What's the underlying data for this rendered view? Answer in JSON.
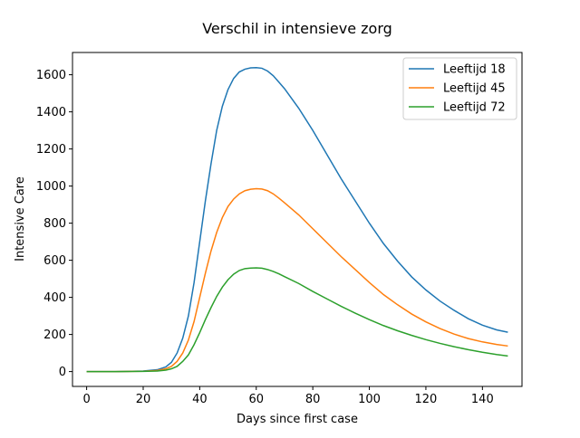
{
  "chart_data": {
    "type": "line",
    "title": "Verschil in intensieve zorg",
    "xlabel": "Days since first case",
    "ylabel": "Intensive Care",
    "xlim": [
      -5,
      154
    ],
    "ylim": [
      -80,
      1720
    ],
    "xticks": [
      0,
      20,
      40,
      60,
      80,
      100,
      120,
      140
    ],
    "yticks": [
      0,
      200,
      400,
      600,
      800,
      1000,
      1200,
      1400,
      1600
    ],
    "grid": false,
    "legend_position": "top-right",
    "series": [
      {
        "name": "Leeftijd 18",
        "color": "#1f77b4",
        "x": [
          0,
          10,
          20,
          25,
          28,
          30,
          32,
          34,
          36,
          38,
          40,
          42,
          44,
          46,
          48,
          50,
          52,
          54,
          56,
          58,
          60,
          62,
          64,
          66,
          68,
          70,
          75,
          80,
          85,
          90,
          95,
          100,
          105,
          110,
          115,
          120,
          125,
          130,
          135,
          140,
          145,
          149
        ],
        "y": [
          0,
          0,
          3,
          10,
          25,
          50,
          100,
          180,
          300,
          480,
          700,
          920,
          1120,
          1300,
          1430,
          1520,
          1580,
          1615,
          1630,
          1637,
          1638,
          1635,
          1620,
          1595,
          1560,
          1525,
          1420,
          1300,
          1170,
          1040,
          920,
          800,
          690,
          595,
          510,
          440,
          380,
          330,
          285,
          250,
          225,
          212
        ]
      },
      {
        "name": "Leeftijd 45",
        "color": "#ff7f0e",
        "x": [
          0,
          10,
          20,
          25,
          28,
          30,
          32,
          34,
          36,
          38,
          40,
          42,
          44,
          46,
          48,
          50,
          52,
          54,
          56,
          58,
          60,
          62,
          64,
          66,
          68,
          70,
          75,
          80,
          85,
          90,
          95,
          100,
          105,
          110,
          115,
          120,
          125,
          130,
          135,
          140,
          145,
          149
        ],
        "y": [
          0,
          0,
          2,
          6,
          15,
          28,
          55,
          100,
          170,
          270,
          400,
          530,
          650,
          750,
          830,
          890,
          930,
          958,
          975,
          983,
          986,
          984,
          975,
          958,
          935,
          910,
          845,
          770,
          695,
          620,
          550,
          480,
          415,
          360,
          310,
          268,
          232,
          202,
          178,
          160,
          146,
          138
        ]
      },
      {
        "name": "Leeftijd 72",
        "color": "#2ca02c",
        "x": [
          0,
          10,
          20,
          25,
          28,
          30,
          32,
          34,
          36,
          38,
          40,
          42,
          44,
          46,
          48,
          50,
          52,
          54,
          56,
          58,
          60,
          62,
          64,
          66,
          68,
          70,
          75,
          80,
          85,
          90,
          95,
          100,
          105,
          110,
          115,
          120,
          125,
          130,
          135,
          140,
          145,
          149
        ],
        "y": [
          0,
          0,
          1,
          3,
          8,
          15,
          28,
          55,
          90,
          145,
          210,
          280,
          345,
          405,
          455,
          495,
          525,
          545,
          555,
          558,
          559,
          557,
          550,
          540,
          527,
          512,
          475,
          432,
          392,
          352,
          315,
          280,
          248,
          220,
          195,
          172,
          152,
          134,
          118,
          104,
          92,
          84
        ]
      }
    ]
  }
}
